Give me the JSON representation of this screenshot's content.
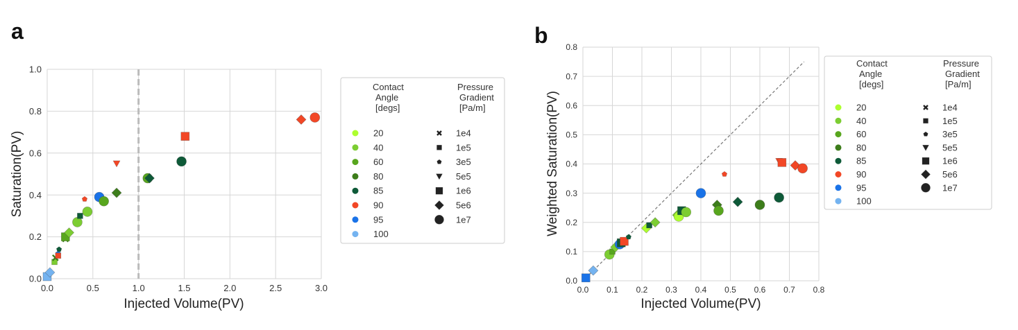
{
  "chart_data": [
    {
      "panel_label": "a",
      "type": "scatter",
      "title": "",
      "xlabel": "Injected Volume(PV)",
      "ylabel": "Saturation(PV)",
      "xlim": [
        0.0,
        3.0
      ],
      "ylim": [
        0.0,
        1.0
      ],
      "xticks": [
        0.0,
        0.5,
        1.0,
        1.5,
        2.0,
        2.5,
        3.0
      ],
      "xtick_labels": [
        "0.0",
        "0.5",
        "1.0",
        "1.5",
        "2.0",
        "2.5",
        "3.0"
      ],
      "yticks": [
        0.0,
        0.2,
        0.4,
        0.6,
        0.8,
        1.0
      ],
      "ytick_labels": [
        "0.0",
        "0.2",
        "0.4",
        "0.6",
        "0.8",
        "1.0"
      ],
      "grid": true,
      "reference_line": {
        "kind": "vertical",
        "x": 1.0,
        "style": "dashed",
        "color": "#bbbbbb"
      },
      "points": [
        {
          "x": 0.0,
          "y": 0.01,
          "angle": "100",
          "pressure": "1e6"
        },
        {
          "x": 0.03,
          "y": 0.03,
          "angle": "100",
          "pressure": "5e6"
        },
        {
          "x": 0.08,
          "y": 0.08,
          "angle": "40",
          "pressure": "1e5"
        },
        {
          "x": 0.09,
          "y": 0.1,
          "angle": "80",
          "pressure": "1e4"
        },
        {
          "x": 0.12,
          "y": 0.12,
          "angle": "95",
          "pressure": "3e5"
        },
        {
          "x": 0.13,
          "y": 0.14,
          "angle": "85",
          "pressure": "3e5"
        },
        {
          "x": 0.12,
          "y": 0.11,
          "angle": "90",
          "pressure": "1e5"
        },
        {
          "x": 0.2,
          "y": 0.19,
          "angle": "80",
          "pressure": "1e4"
        },
        {
          "x": 0.2,
          "y": 0.2,
          "angle": "60",
          "pressure": "1e6"
        },
        {
          "x": 0.24,
          "y": 0.22,
          "angle": "40",
          "pressure": "5e6"
        },
        {
          "x": 0.33,
          "y": 0.27,
          "angle": "40",
          "pressure": "1e7"
        },
        {
          "x": 0.36,
          "y": 0.3,
          "angle": "85",
          "pressure": "1e5"
        },
        {
          "x": 0.41,
          "y": 0.38,
          "angle": "90",
          "pressure": "3e5"
        },
        {
          "x": 0.44,
          "y": 0.32,
          "angle": "40",
          "pressure": "1e7"
        },
        {
          "x": 0.57,
          "y": 0.39,
          "angle": "95",
          "pressure": "1e7"
        },
        {
          "x": 0.62,
          "y": 0.37,
          "angle": "60",
          "pressure": "1e7"
        },
        {
          "x": 0.76,
          "y": 0.41,
          "angle": "80",
          "pressure": "5e6"
        },
        {
          "x": 0.76,
          "y": 0.55,
          "angle": "90",
          "pressure": "5e5"
        },
        {
          "x": 1.1,
          "y": 0.48,
          "angle": "60",
          "pressure": "1e7"
        },
        {
          "x": 1.12,
          "y": 0.48,
          "angle": "85",
          "pressure": "5e6"
        },
        {
          "x": 1.47,
          "y": 0.56,
          "angle": "85",
          "pressure": "1e7"
        },
        {
          "x": 1.51,
          "y": 0.68,
          "angle": "90",
          "pressure": "1e6"
        },
        {
          "x": 2.78,
          "y": 0.76,
          "angle": "90",
          "pressure": "5e6"
        },
        {
          "x": 2.93,
          "y": 0.77,
          "angle": "90",
          "pressure": "1e7"
        }
      ]
    },
    {
      "panel_label": "b",
      "type": "scatter",
      "title": "",
      "xlabel": "Injected Volume(PV)",
      "ylabel": "Weighted Saturation(PV)",
      "xlim": [
        0.0,
        0.8
      ],
      "ylim": [
        0.0,
        0.8
      ],
      "xticks": [
        0.0,
        0.1,
        0.2,
        0.3,
        0.4,
        0.5,
        0.6,
        0.7,
        0.8
      ],
      "xtick_labels": [
        "0.0",
        "0.1",
        "0.2",
        "0.3",
        "0.4",
        "0.5",
        "0.6",
        "0.7",
        "0.8"
      ],
      "yticks": [
        0.0,
        0.1,
        0.2,
        0.3,
        0.4,
        0.5,
        0.6,
        0.7,
        0.8
      ],
      "ytick_labels": [
        "0.0",
        "0.1",
        "0.2",
        "0.3",
        "0.4",
        "0.5",
        "0.6",
        "0.7",
        "0.8"
      ],
      "grid": true,
      "reference_line": {
        "kind": "diagonal",
        "x": [
          0.0,
          0.75
        ],
        "y": [
          0.0,
          0.75
        ],
        "style": "dashed",
        "color": "#777777"
      },
      "points": [
        {
          "x": 0.01,
          "y": 0.01,
          "angle": "95",
          "pressure": "1e6"
        },
        {
          "x": 0.035,
          "y": 0.035,
          "angle": "100",
          "pressure": "5e6"
        },
        {
          "x": 0.09,
          "y": 0.09,
          "angle": "40",
          "pressure": "1e7"
        },
        {
          "x": 0.1,
          "y": 0.1,
          "angle": "60",
          "pressure": "1e5"
        },
        {
          "x": 0.11,
          "y": 0.115,
          "angle": "40",
          "pressure": "5e6"
        },
        {
          "x": 0.125,
          "y": 0.125,
          "angle": "95",
          "pressure": "1e7"
        },
        {
          "x": 0.13,
          "y": 0.13,
          "angle": "85",
          "pressure": "1e6"
        },
        {
          "x": 0.14,
          "y": 0.135,
          "angle": "90",
          "pressure": "1e6"
        },
        {
          "x": 0.155,
          "y": 0.15,
          "angle": "85",
          "pressure": "3e5"
        },
        {
          "x": 0.215,
          "y": 0.18,
          "angle": "20",
          "pressure": "5e6"
        },
        {
          "x": 0.225,
          "y": 0.19,
          "angle": "85",
          "pressure": "1e5"
        },
        {
          "x": 0.245,
          "y": 0.2,
          "angle": "40",
          "pressure": "5e6"
        },
        {
          "x": 0.32,
          "y": 0.225,
          "angle": "40",
          "pressure": "5e6"
        },
        {
          "x": 0.325,
          "y": 0.22,
          "angle": "20",
          "pressure": "1e7"
        },
        {
          "x": 0.335,
          "y": 0.24,
          "angle": "85",
          "pressure": "1e6"
        },
        {
          "x": 0.35,
          "y": 0.235,
          "angle": "40",
          "pressure": "1e7"
        },
        {
          "x": 0.4,
          "y": 0.3,
          "angle": "95",
          "pressure": "1e7"
        },
        {
          "x": 0.455,
          "y": 0.26,
          "angle": "80",
          "pressure": "5e6"
        },
        {
          "x": 0.46,
          "y": 0.24,
          "angle": "60",
          "pressure": "1e7"
        },
        {
          "x": 0.48,
          "y": 0.365,
          "angle": "90",
          "pressure": "3e5"
        },
        {
          "x": 0.525,
          "y": 0.27,
          "angle": "85",
          "pressure": "5e6"
        },
        {
          "x": 0.6,
          "y": 0.26,
          "angle": "80",
          "pressure": "1e7"
        },
        {
          "x": 0.665,
          "y": 0.41,
          "angle": "90",
          "pressure": "5e5"
        },
        {
          "x": 0.665,
          "y": 0.285,
          "angle": "85",
          "pressure": "1e7"
        },
        {
          "x": 0.675,
          "y": 0.405,
          "angle": "90",
          "pressure": "1e6"
        },
        {
          "x": 0.72,
          "y": 0.395,
          "angle": "90",
          "pressure": "5e6"
        },
        {
          "x": 0.745,
          "y": 0.385,
          "angle": "90",
          "pressure": "1e7"
        }
      ]
    }
  ],
  "legend": {
    "angle_header": [
      "Contact",
      "Angle",
      "[degs]"
    ],
    "pressure_header": [
      "Pressure",
      "Gradient",
      "[Pa/m]"
    ],
    "angles": [
      {
        "label": "20",
        "color": "#adff2f"
      },
      {
        "label": "40",
        "color": "#7ccd32"
      },
      {
        "label": "60",
        "color": "#58a61e"
      },
      {
        "label": "80",
        "color": "#3d7d1b"
      },
      {
        "label": "85",
        "color": "#0e5a38"
      },
      {
        "label": "90",
        "color": "#f24726"
      },
      {
        "label": "95",
        "color": "#1a73e8"
      },
      {
        "label": "100",
        "color": "#74b3f0"
      }
    ],
    "pressures": [
      {
        "label": "1e4",
        "marker": "x"
      },
      {
        "label": "1e5",
        "marker": "square-small"
      },
      {
        "label": "3e5",
        "marker": "pentagon"
      },
      {
        "label": "5e5",
        "marker": "triangle-down"
      },
      {
        "label": "1e6",
        "marker": "square"
      },
      {
        "label": "5e6",
        "marker": "diamond"
      },
      {
        "label": "1e7",
        "marker": "circle"
      }
    ]
  }
}
